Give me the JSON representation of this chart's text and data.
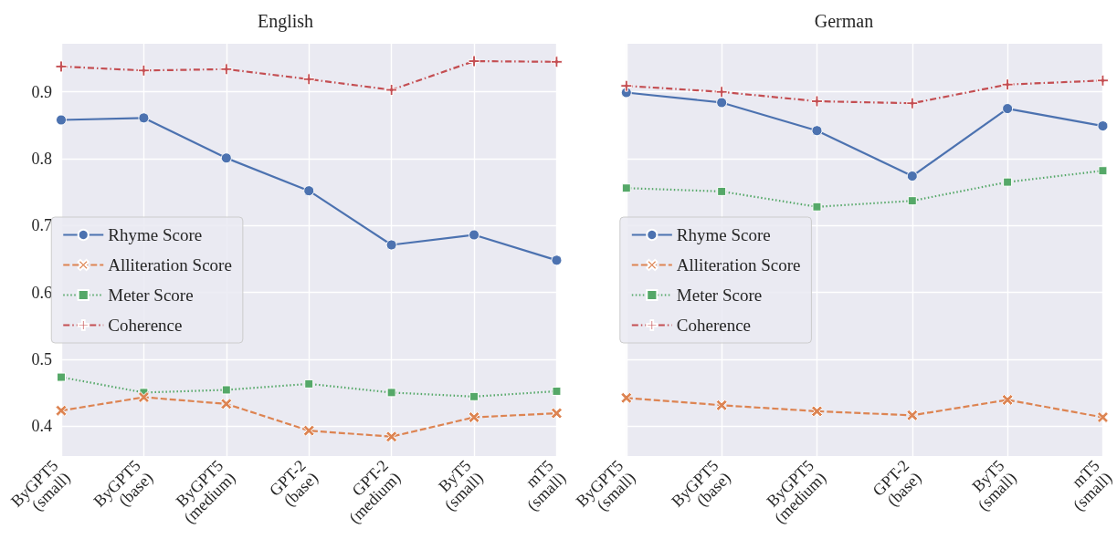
{
  "chart_data": [
    {
      "type": "line",
      "title": "English",
      "categories": [
        "ByGPT5\n(small)",
        "ByGPT5\n(base)",
        "ByGPT5\n(medium)",
        "GPT-2\n(base)",
        "GPT-2\n(medium)",
        "ByT5\n(small)",
        "mT5\n(small)"
      ],
      "series": [
        {
          "name": "Rhyme Score",
          "color": "#4c72b0",
          "marker": "circle",
          "line_style": "solid",
          "values": [
            0.858,
            0.861,
            0.801,
            0.752,
            0.671,
            0.686,
            0.648
          ]
        },
        {
          "name": "Alliteration Score",
          "color": "#dd8452",
          "marker": "cross",
          "line_style": "dashed",
          "values": [
            0.423,
            0.443,
            0.433,
            0.393,
            0.384,
            0.413,
            0.419
          ]
        },
        {
          "name": "Meter Score",
          "color": "#55a868",
          "marker": "square",
          "line_style": "dotted",
          "values": [
            0.473,
            0.45,
            0.454,
            0.463,
            0.45,
            0.444,
            0.452
          ]
        },
        {
          "name": "Coherence",
          "color": "#c44e52",
          "marker": "plus",
          "line_style": "dashdot",
          "values": [
            0.938,
            0.932,
            0.934,
            0.919,
            0.903,
            0.946,
            0.945
          ]
        }
      ],
      "ylim": [
        0.355,
        0.972
      ],
      "yticks": [
        0.4,
        0.5,
        0.6,
        0.7,
        0.8,
        0.9
      ],
      "grid": true,
      "legend": "center left"
    },
    {
      "type": "line",
      "title": "German",
      "categories": [
        "ByGPT5\n(small)",
        "ByGPT5\n(base)",
        "ByGPT5\n(medium)",
        "GPT-2\n(base)",
        "ByT5\n(small)",
        "mT5\n(small)"
      ],
      "series": [
        {
          "name": "Rhyme Score",
          "color": "#4c72b0",
          "marker": "circle",
          "line_style": "solid",
          "values": [
            0.899,
            0.884,
            0.842,
            0.774,
            0.875,
            0.849
          ]
        },
        {
          "name": "Alliteration Score",
          "color": "#dd8452",
          "marker": "cross",
          "line_style": "dashed",
          "values": [
            0.442,
            0.431,
            0.422,
            0.416,
            0.439,
            0.413
          ]
        },
        {
          "name": "Meter Score",
          "color": "#55a868",
          "marker": "square",
          "line_style": "dotted",
          "values": [
            0.756,
            0.751,
            0.728,
            0.737,
            0.765,
            0.782
          ]
        },
        {
          "name": "Coherence",
          "color": "#c44e52",
          "marker": "plus",
          "line_style": "dashdot",
          "values": [
            0.909,
            0.9,
            0.886,
            0.883,
            0.911,
            0.917
          ]
        }
      ],
      "ylim": [
        0.355,
        0.972
      ],
      "yticks": [
        0.4,
        0.5,
        0.6,
        0.7,
        0.8,
        0.9
      ],
      "grid": true,
      "legend": "center left",
      "tick_labels": "x"
    }
  ]
}
